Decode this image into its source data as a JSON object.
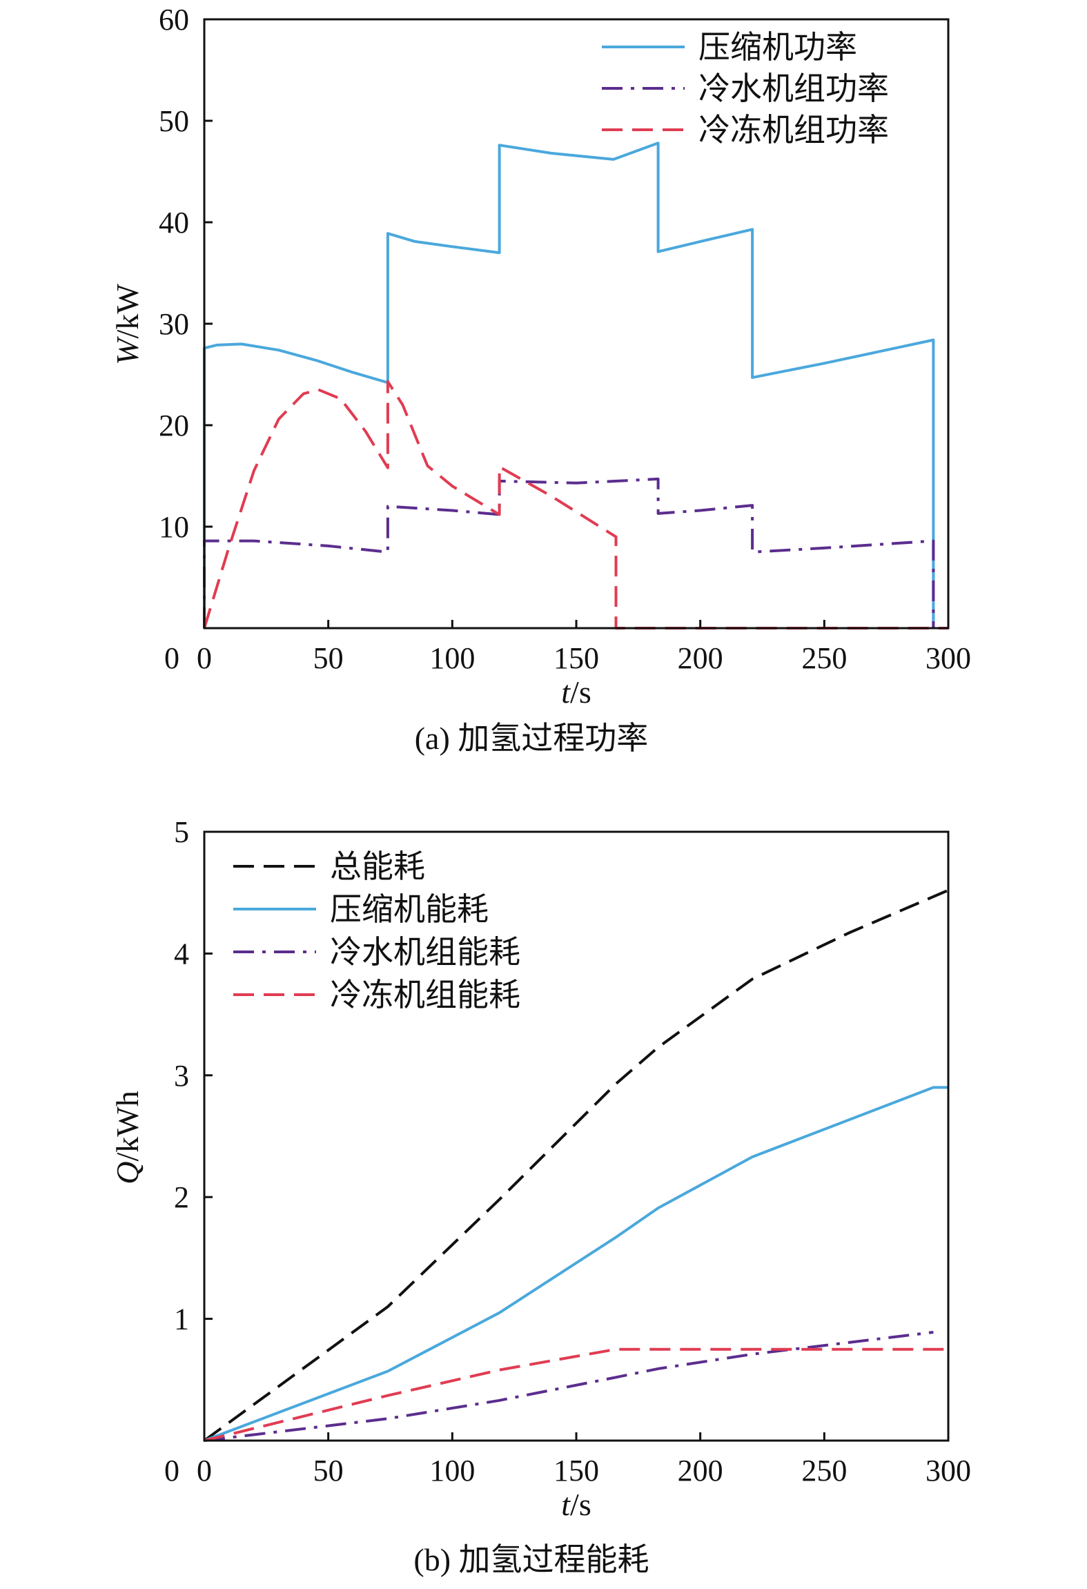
{
  "figure": {
    "panels": [
      {
        "caption": "(a) 加氢过程功率",
        "xlabel_var": "t",
        "xlabel_unit": "/s",
        "ylabel_var": "W",
        "ylabel_unit": "/kW"
      },
      {
        "caption": "(b) 加氢过程能耗",
        "xlabel_var": "t",
        "xlabel_unit": "/s",
        "ylabel_var": "Q",
        "ylabel_unit": "/kWh"
      }
    ]
  },
  "chart_data": [
    {
      "type": "line",
      "title": "",
      "caption": "(a) 加氢过程功率",
      "xlabel": "t/s",
      "ylabel": "W/kW",
      "xlim": [
        0,
        300
      ],
      "ylim": [
        0,
        60
      ],
      "xticks": [
        0,
        50,
        100,
        150,
        200,
        250,
        300
      ],
      "yticks": [
        10,
        20,
        30,
        40,
        50,
        60
      ],
      "grid": false,
      "legend_position": "top-right",
      "series": [
        {
          "name": "压缩机功率",
          "color": "#4aa8dc",
          "style": "solid",
          "points": [
            [
              0,
              0
            ],
            [
              0,
              27.6
            ],
            [
              5,
              27.9
            ],
            [
              15,
              28.0
            ],
            [
              30,
              27.4
            ],
            [
              45,
              26.4
            ],
            [
              60,
              25.2
            ],
            [
              74,
              24.2
            ],
            [
              74,
              38.9
            ],
            [
              85,
              38.1
            ],
            [
              100,
              37.6
            ],
            [
              119,
              37.0
            ],
            [
              119,
              47.6
            ],
            [
              140,
              46.8
            ],
            [
              165,
              46.2
            ],
            [
              183,
              47.8
            ],
            [
              183,
              37.1
            ],
            [
              200,
              38.1
            ],
            [
              221,
              39.3
            ],
            [
              221,
              24.7
            ],
            [
              250,
              26.1
            ],
            [
              294,
              28.4
            ],
            [
              294,
              0
            ]
          ]
        },
        {
          "name": "冷水机组功率",
          "color": "#5b2d8e",
          "style": "dashdot",
          "points": [
            [
              0,
              0
            ],
            [
              0,
              8.6
            ],
            [
              20,
              8.6
            ],
            [
              50,
              8.1
            ],
            [
              74,
              7.5
            ],
            [
              74,
              12.0
            ],
            [
              100,
              11.6
            ],
            [
              119,
              11.2
            ],
            [
              119,
              14.5
            ],
            [
              150,
              14.3
            ],
            [
              183,
              14.7
            ],
            [
              183,
              11.3
            ],
            [
              200,
              11.6
            ],
            [
              221,
              12.1
            ],
            [
              221,
              7.5
            ],
            [
              250,
              7.9
            ],
            [
              294,
              8.6
            ],
            [
              294,
              0
            ]
          ]
        },
        {
          "name": "冷冻机组功率",
          "color": "#e03c52",
          "style": "dashed",
          "points": [
            [
              0,
              0
            ],
            [
              10,
              8
            ],
            [
              20,
              15.5
            ],
            [
              30,
              20.6
            ],
            [
              40,
              23.1
            ],
            [
              46,
              23.5
            ],
            [
              55,
              22.6
            ],
            [
              65,
              19.4
            ],
            [
              74,
              15.8
            ],
            [
              74,
              24.3
            ],
            [
              80,
              22
            ],
            [
              90,
              16
            ],
            [
              100,
              14
            ],
            [
              119,
              11.2
            ],
            [
              119,
              15.9
            ],
            [
              140,
              13
            ],
            [
              166,
              9.0
            ],
            [
              166,
              0
            ],
            [
              300,
              0
            ]
          ]
        }
      ]
    },
    {
      "type": "line",
      "title": "",
      "caption": "(b) 加氢过程能耗",
      "xlabel": "t/s",
      "ylabel": "Q/kWh",
      "xlim": [
        0,
        300
      ],
      "ylim": [
        0,
        5
      ],
      "xticks": [
        0,
        50,
        100,
        150,
        200,
        250,
        300
      ],
      "yticks": [
        1,
        2,
        3,
        4,
        5
      ],
      "grid": false,
      "legend_position": "top-left",
      "series": [
        {
          "name": "总能耗",
          "color": "#111111",
          "style": "dashed",
          "points": [
            [
              0,
              0
            ],
            [
              74,
              1.1
            ],
            [
              119,
              1.98
            ],
            [
              166,
              2.93
            ],
            [
              183,
              3.23
            ],
            [
              221,
              3.79
            ],
            [
              260,
              4.17
            ],
            [
              300,
              4.52
            ]
          ]
        },
        {
          "name": "压缩机能耗",
          "color": "#4aa8dc",
          "style": "solid",
          "points": [
            [
              0,
              0
            ],
            [
              74,
              0.57
            ],
            [
              119,
              1.05
            ],
            [
              166,
              1.67
            ],
            [
              183,
              1.91
            ],
            [
              221,
              2.33
            ],
            [
              294,
              2.9
            ],
            [
              300,
              2.9
            ]
          ]
        },
        {
          "name": "冷水机组能耗",
          "color": "#5b2d8e",
          "style": "dashdot",
          "points": [
            [
              0,
              0
            ],
            [
              74,
              0.18
            ],
            [
              119,
              0.33
            ],
            [
              166,
              0.52
            ],
            [
              183,
              0.59
            ],
            [
              221,
              0.71
            ],
            [
              294,
              0.89
            ]
          ]
        },
        {
          "name": "冷冻机组能耗",
          "color": "#e03c52",
          "style": "dashed",
          "points": [
            [
              0,
              0
            ],
            [
              74,
              0.37
            ],
            [
              119,
              0.58
            ],
            [
              166,
              0.75
            ],
            [
              300,
              0.75
            ]
          ]
        }
      ]
    }
  ]
}
